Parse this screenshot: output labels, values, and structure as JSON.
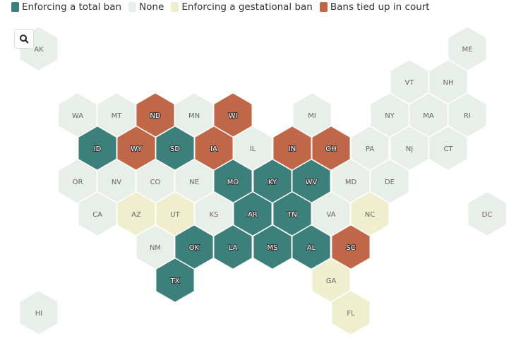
{
  "legend": [
    {
      "label": "Enforcing a total ban",
      "color": "#3d7f7a"
    },
    {
      "label": "None",
      "color": "#e8efe9"
    },
    {
      "label": "Enforcing a gestational ban",
      "color": "#efefcf"
    },
    {
      "label": "Bans tied up in court",
      "color": "#c0674a"
    }
  ],
  "states": [
    {
      "label": "AK",
      "legend": 1
    },
    {
      "label": "ME",
      "legend": 1
    },
    {
      "label": "VT",
      "legend": 1
    },
    {
      "label": "NH",
      "legend": 1
    },
    {
      "label": "WA",
      "legend": 1
    },
    {
      "label": "MT",
      "legend": 1
    },
    {
      "label": "ND",
      "legend": 3
    },
    {
      "label": "MN",
      "legend": 1
    },
    {
      "label": "WI",
      "legend": 3
    },
    {
      "label": "MI",
      "legend": 1
    },
    {
      "label": "NY",
      "legend": 1
    },
    {
      "label": "MA",
      "legend": 1
    },
    {
      "label": "RI",
      "legend": 1
    },
    {
      "label": "ID",
      "legend": 0
    },
    {
      "label": "WY",
      "legend": 3
    },
    {
      "label": "SD",
      "legend": 0
    },
    {
      "label": "IA",
      "legend": 3
    },
    {
      "label": "IL",
      "legend": 1
    },
    {
      "label": "IN",
      "legend": 3
    },
    {
      "label": "OH",
      "legend": 3
    },
    {
      "label": "PA",
      "legend": 1
    },
    {
      "label": "NJ",
      "legend": 1
    },
    {
      "label": "CT",
      "legend": 1
    },
    {
      "label": "OR",
      "legend": 1
    },
    {
      "label": "NV",
      "legend": 1
    },
    {
      "label": "CO",
      "legend": 1
    },
    {
      "label": "NE",
      "legend": 1
    },
    {
      "label": "MO",
      "legend": 0
    },
    {
      "label": "KY",
      "legend": 0
    },
    {
      "label": "WV",
      "legend": 0
    },
    {
      "label": "MD",
      "legend": 1
    },
    {
      "label": "DE",
      "legend": 1
    },
    {
      "label": "CA",
      "legend": 1
    },
    {
      "label": "AZ",
      "legend": 2
    },
    {
      "label": "UT",
      "legend": 2
    },
    {
      "label": "KS",
      "legend": 1
    },
    {
      "label": "AR",
      "legend": 0
    },
    {
      "label": "TN",
      "legend": 0
    },
    {
      "label": "VA",
      "legend": 1
    },
    {
      "label": "NC",
      "legend": 2
    },
    {
      "label": "DC",
      "legend": 1
    },
    {
      "label": "NM",
      "legend": 1
    },
    {
      "label": "OK",
      "legend": 0
    },
    {
      "label": "LA",
      "legend": 0
    },
    {
      "label": "MS",
      "legend": 0
    },
    {
      "label": "AL",
      "legend": 0
    },
    {
      "label": "SC",
      "legend": 3
    },
    {
      "label": "TX",
      "legend": 0
    },
    {
      "label": "GA",
      "legend": 2
    },
    {
      "label": "HI",
      "legend": 1
    },
    {
      "label": "FL",
      "legend": 2
    }
  ]
}
